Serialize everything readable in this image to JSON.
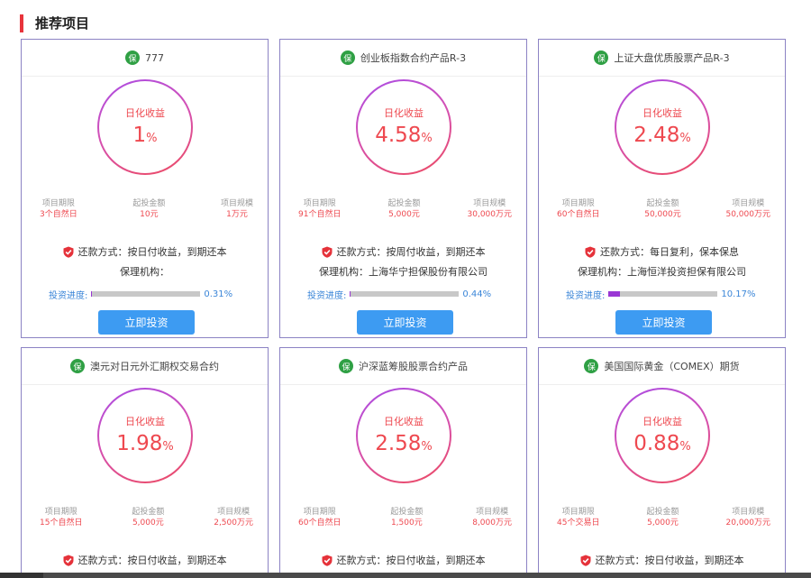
{
  "section": {
    "title": "推荐项目"
  },
  "common": {
    "badge": "保",
    "ring_label": "日化收益",
    "unit": "%",
    "term_label": "项目期限",
    "min_label": "起投金额",
    "scale_label": "项目规模",
    "progress_label": "投资进度:",
    "invest_button": "立即投资"
  },
  "cards": [
    {
      "name": "777",
      "rate": "1",
      "term": "3个自然日",
      "min": "10元",
      "scale": "1万元",
      "repay": "还款方式：按日付收益，到期还本",
      "guarantor": "保理机构：",
      "progress": 0.31,
      "progress_text": "0.31%"
    },
    {
      "name": "创业板指数合约产品R-3",
      "rate": "4.58",
      "term": "91个自然日",
      "min": "5,000元",
      "scale": "30,000万元",
      "repay": "还款方式：按周付收益，到期还本",
      "guarantor": "保理机构：上海华宁担保股份有限公司",
      "progress": 0.44,
      "progress_text": "0.44%"
    },
    {
      "name": "上证大盘优质股票产品R-3",
      "rate": "2.48",
      "term": "60个自然日",
      "min": "50,000元",
      "scale": "50,000万元",
      "repay": "还款方式：每日复利，保本保息",
      "guarantor": "保理机构：上海恒洋投资担保有限公司",
      "progress": 10.17,
      "progress_text": "10.17%"
    },
    {
      "name": "澳元对日元外汇期权交易合约",
      "rate": "1.98",
      "term": "15个自然日",
      "min": "5,000元",
      "scale": "2,500万元",
      "repay": "还款方式：按日付收益，到期还本",
      "guarantor": "",
      "progress": 0,
      "progress_text": ""
    },
    {
      "name": "沪深蓝筹股股票合约产品",
      "rate": "2.58",
      "term": "60个自然日",
      "min": "1,500元",
      "scale": "8,000万元",
      "repay": "还款方式：按日付收益，到期还本",
      "guarantor": "",
      "progress": 0,
      "progress_text": ""
    },
    {
      "name": "美国国际黄金（COMEX）期货",
      "rate": "0.88",
      "term": "45个交易日",
      "min": "5,000元",
      "scale": "20,000万元",
      "repay": "还款方式：按日付收益，到期还本",
      "guarantor": "",
      "progress": 0,
      "progress_text": ""
    }
  ],
  "colors": {
    "accent": "#ee4950",
    "button": "#3d9bf2",
    "card_border": "#8c83c4",
    "progress_fill": "#9a37d4"
  }
}
